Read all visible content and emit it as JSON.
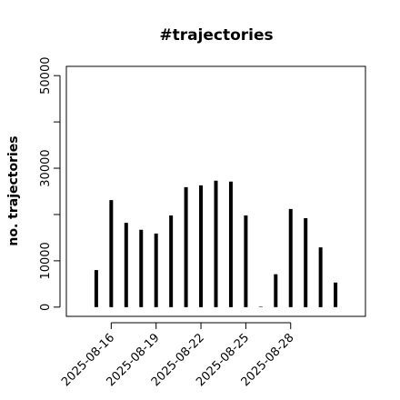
{
  "chart_data": {
    "type": "bar",
    "title": "#trajectories",
    "y_label": "no. trajectories",
    "x": [
      "2025-08-15",
      "2025-08-16",
      "2025-08-17",
      "2025-08-18",
      "2025-08-19",
      "2025-08-20",
      "2025-08-21",
      "2025-08-22",
      "2025-08-23",
      "2025-08-24",
      "2025-08-25",
      "2025-08-26",
      "2025-08-27",
      "2025-08-28",
      "2025-08-29",
      "2025-08-30",
      "2025-08-31"
    ],
    "values": [
      8000,
      23100,
      18200,
      16700,
      15900,
      19800,
      25900,
      26300,
      27300,
      27100,
      19800,
      100,
      7100,
      21200,
      19200,
      12900,
      5300
    ],
    "color": "#000000",
    "xlim": [
      "2025-08-13",
      "2025-09-02"
    ],
    "xticks": [
      "2025-08-16",
      "2025-08-19",
      "2025-08-22",
      "2025-08-25",
      "2025-08-28"
    ],
    "ylim": [
      -2000,
      52000
    ],
    "yticks": [
      0,
      10000,
      {
        "value": 20000,
        "label": null
      },
      30000,
      {
        "value": 40000,
        "label": null
      },
      50000
    ]
  }
}
